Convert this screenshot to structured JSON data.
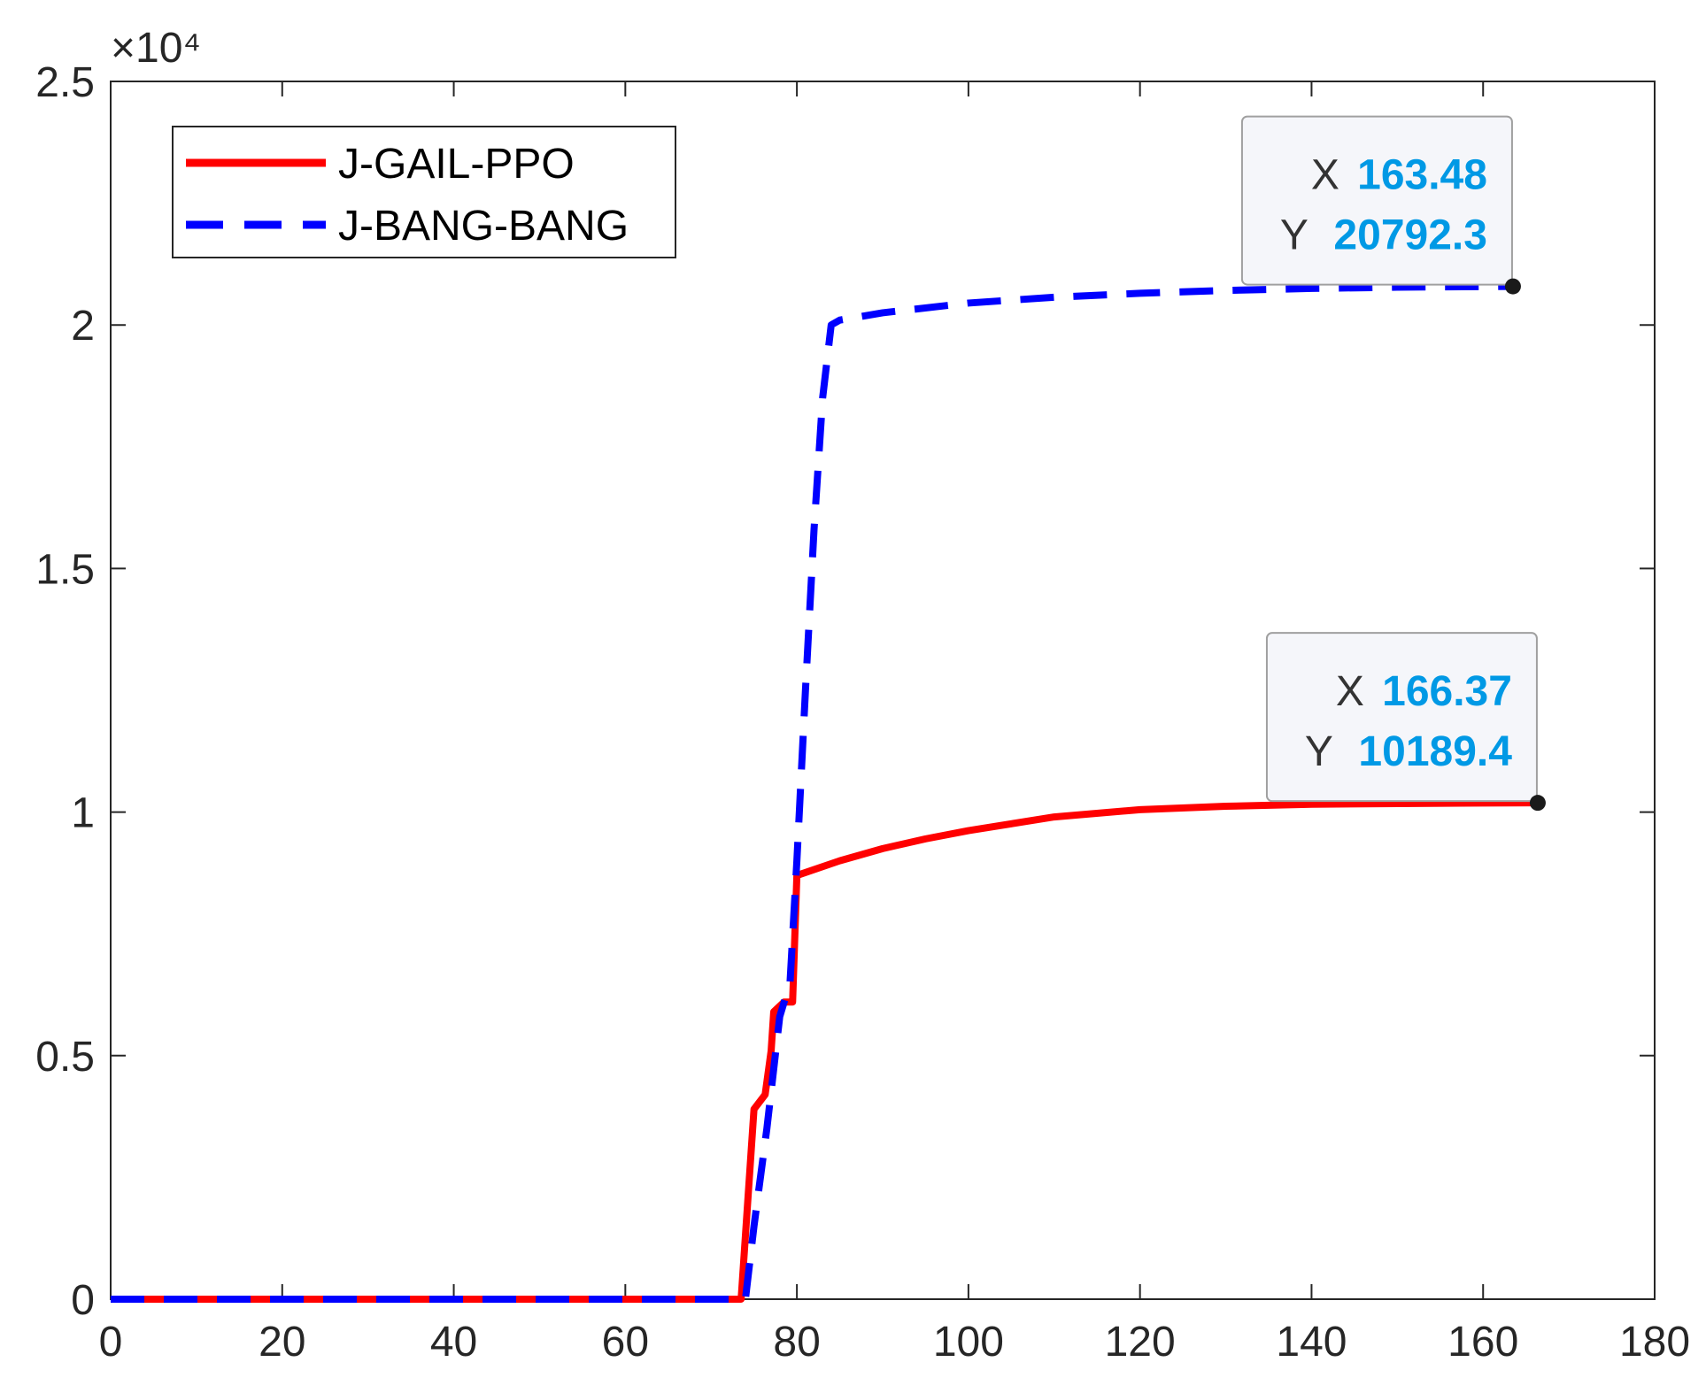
{
  "chart_data": {
    "type": "line",
    "title": "",
    "xlabel": "",
    "ylabel": "",
    "xlim": [
      0,
      180
    ],
    "ylim": [
      0,
      25000
    ],
    "x_ticks": [
      0,
      20,
      40,
      60,
      80,
      100,
      120,
      140,
      160,
      180
    ],
    "y_ticks": [
      0,
      5000,
      10000,
      15000,
      20000,
      25000
    ],
    "y_tick_labels": [
      "0",
      "0.5",
      "1",
      "1.5",
      "2",
      "2.5"
    ],
    "y_exponent_label": "×10⁴",
    "grid": false,
    "legend_position": "top-left",
    "series": [
      {
        "name": "J-GAIL-PPO",
        "color": "#ff0000",
        "style": "solid",
        "x": [
          0,
          73.5,
          75,
          76.3,
          77,
          77.3,
          78.5,
          79.5,
          80,
          85,
          90,
          95,
          100,
          110,
          120,
          130,
          140,
          150,
          160,
          166.37
        ],
        "y": [
          0,
          0,
          3900,
          4200,
          5100,
          5900,
          6100,
          6100,
          8700,
          9000,
          9250,
          9450,
          9620,
          9900,
          10050,
          10120,
          10160,
          10175,
          10185,
          10189.4
        ]
      },
      {
        "name": "J-BANG-BANG",
        "color": "#0000ff",
        "style": "dashed",
        "x": [
          0,
          74,
          75,
          76.5,
          78,
          79.2,
          80,
          81,
          82,
          83,
          84,
          85,
          90,
          100,
          110,
          120,
          130,
          140,
          150,
          160,
          163.48
        ],
        "y": [
          0,
          0,
          1500,
          3500,
          5800,
          6500,
          9000,
          12500,
          15800,
          18500,
          20000,
          20100,
          20250,
          20450,
          20570,
          20650,
          20710,
          20750,
          20775,
          20788,
          20792.3
        ]
      }
    ],
    "datatips": [
      {
        "x_key": "X",
        "y_key": "Y",
        "x_text": "163.48",
        "y_text": "20792.3",
        "x": 163.48,
        "y": 20792.3
      },
      {
        "x_key": "X",
        "y_key": "Y",
        "x_text": "166.37",
        "y_text": "10189.4",
        "x": 166.37,
        "y": 10189.4
      }
    ],
    "datatip_value_color": "#0099e5"
  }
}
